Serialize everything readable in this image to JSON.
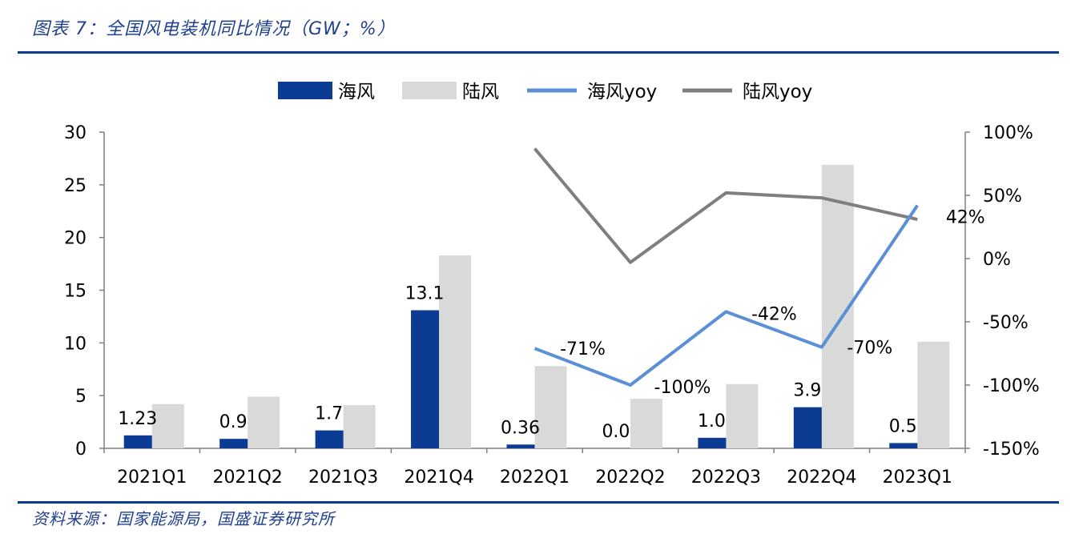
{
  "header": {
    "title": "图表 7：全国风电装机同比情况（GW；%）"
  },
  "footer": {
    "source": "资料来源：国家能源局，国盛证券研究所"
  },
  "chart_data": {
    "type": "bar",
    "categories": [
      "2021Q1",
      "2021Q2",
      "2021Q3",
      "2021Q4",
      "2022Q1",
      "2022Q2",
      "2022Q3",
      "2022Q4",
      "2023Q1"
    ],
    "series": [
      {
        "name": "海风",
        "kind": "bar",
        "axis": "left",
        "color": "#0b3b93",
        "values": [
          1.23,
          0.9,
          1.7,
          13.1,
          0.36,
          0.0,
          1.0,
          3.9,
          0.5
        ],
        "labels": [
          "1.23",
          "0.9",
          "1.7",
          "13.1",
          "0.36",
          "0.0",
          "1.0",
          "3.9",
          "0.5"
        ]
      },
      {
        "name": "陆风",
        "kind": "bar",
        "axis": "left",
        "color": "#d9d9d9",
        "values": [
          4.2,
          4.9,
          4.1,
          18.3,
          7.8,
          4.7,
          6.1,
          26.9,
          10.1
        ]
      },
      {
        "name": "海风yoy",
        "kind": "line",
        "axis": "right",
        "color": "#5b8fd6",
        "values": [
          null,
          null,
          null,
          null,
          -71,
          -100,
          -42,
          -70,
          42
        ],
        "labels": [
          null,
          null,
          null,
          null,
          "-71%",
          "-100%",
          "-42%",
          "-70%",
          "42%"
        ]
      },
      {
        "name": "陆风yoy",
        "kind": "line",
        "axis": "right",
        "color": "#7f7f7f",
        "values": [
          null,
          null,
          null,
          null,
          87,
          -3,
          52,
          48,
          31
        ]
      }
    ],
    "left_axis": {
      "ylim": [
        0,
        30
      ],
      "ticks": [
        0,
        5,
        10,
        15,
        20,
        25,
        30
      ],
      "tick_labels": [
        "0",
        "5",
        "10",
        "15",
        "20",
        "25",
        "30"
      ]
    },
    "right_axis": {
      "ylim": [
        -150,
        100
      ],
      "ticks": [
        -150,
        -100,
        -50,
        0,
        50,
        100
      ],
      "tick_labels": [
        "-150%",
        "-100%",
        "-50%",
        "0%",
        "50%",
        "100%"
      ]
    },
    "legend": "top-center",
    "grid": false
  }
}
